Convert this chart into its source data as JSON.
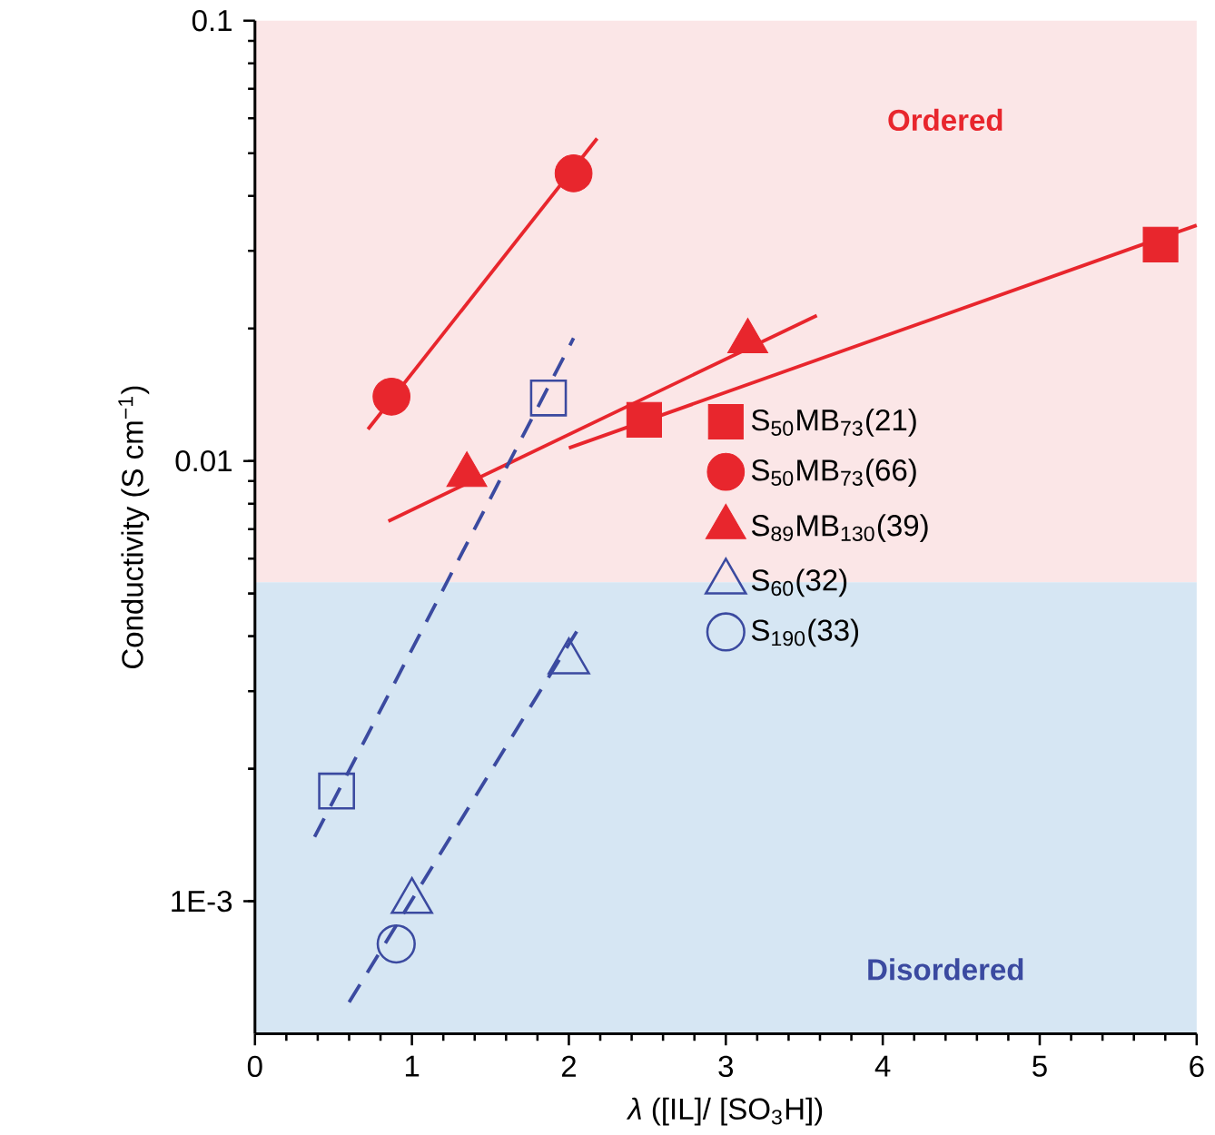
{
  "chart_data": {
    "type": "scatter",
    "xlabel": "*λ* ([IL]/ [SO$_{3}$H])",
    "ylabel": "Conductivity (S cm$^{−1}$)",
    "xlim": [
      0,
      6
    ],
    "ylim": [
      0.0005,
      0.1
    ],
    "log": "y",
    "xticks": [
      0,
      1,
      2,
      3,
      4,
      5,
      6
    ],
    "yticks": [
      {
        "value": 0.001,
        "label": "1E-3"
      },
      0.01,
      0.1
    ],
    "legend": "right",
    "bands": [
      {
        "axis": "y",
        "from": 0.0053,
        "to": 0.1,
        "label": "Ordered",
        "color": "#fbe6e7"
      },
      {
        "axis": "y",
        "from": 0.0005,
        "to": 0.0053,
        "label": "Disordered",
        "color": "#d6e6f3"
      }
    ],
    "series": [
      {
        "name": "S$_{50}$MB$_{73}$(21)",
        "color": "#e8262d",
        "marker": "square",
        "x": [
          2.48,
          5.77
        ],
        "values": [
          0.0124,
          0.031
        ]
      },
      {
        "name": "S$_{50}$MB$_{73}$(66)",
        "color": "#e8262d",
        "marker": "circle",
        "x": [
          0.87,
          2.03
        ],
        "values": [
          0.014,
          0.045
        ]
      },
      {
        "name": "S$_{89}$MB$_{130}$(39)",
        "color": "#e8262d",
        "marker": "triangle",
        "x": [
          1.35,
          3.14
        ],
        "values": [
          0.0093,
          0.0187
        ]
      },
      {
        "name": "S$_{60}$(32)",
        "color": "#3b4aa0",
        "marker": "triangle-open",
        "x": [
          1.0,
          2.0
        ],
        "values": [
          0.001,
          0.0035
        ]
      },
      {
        "name": "S$_{190}$(33)",
        "color": "#3b4aa0",
        "marker": "circle-open",
        "x": [
          0.9
        ],
        "values": [
          0.0008
        ]
      },
      {
        "color": "#3b4aa0",
        "marker": "square-open",
        "x": [
          0.52,
          1.87
        ],
        "values": [
          0.00178,
          0.0139
        ]
      },
      {
        "type": "line",
        "color": "#e8262d",
        "marker": "none",
        "line_style": "solid",
        "x": [
          2.0,
          6.0
        ],
        "values": [
          0.0107,
          0.0343
        ]
      },
      {
        "type": "line",
        "color": "#e8262d",
        "marker": "none",
        "line_style": "solid",
        "x": [
          0.72,
          2.18
        ],
        "values": [
          0.0118,
          0.054
        ]
      },
      {
        "type": "line",
        "color": "#e8262d",
        "marker": "none",
        "line_style": "solid",
        "x": [
          0.85,
          3.58
        ],
        "values": [
          0.0073,
          0.0214
        ]
      },
      {
        "type": "line",
        "color": "#3b4aa0",
        "marker": "none",
        "line_style": "dashed",
        "x": [
          0.38,
          2.03
        ],
        "values": [
          0.0014,
          0.019
        ]
      },
      {
        "type": "line",
        "color": "#3b4aa0",
        "marker": "none",
        "line_style": "dashed",
        "x": [
          0.6,
          2.05
        ],
        "values": [
          0.00059,
          0.0041
        ]
      }
    ]
  }
}
